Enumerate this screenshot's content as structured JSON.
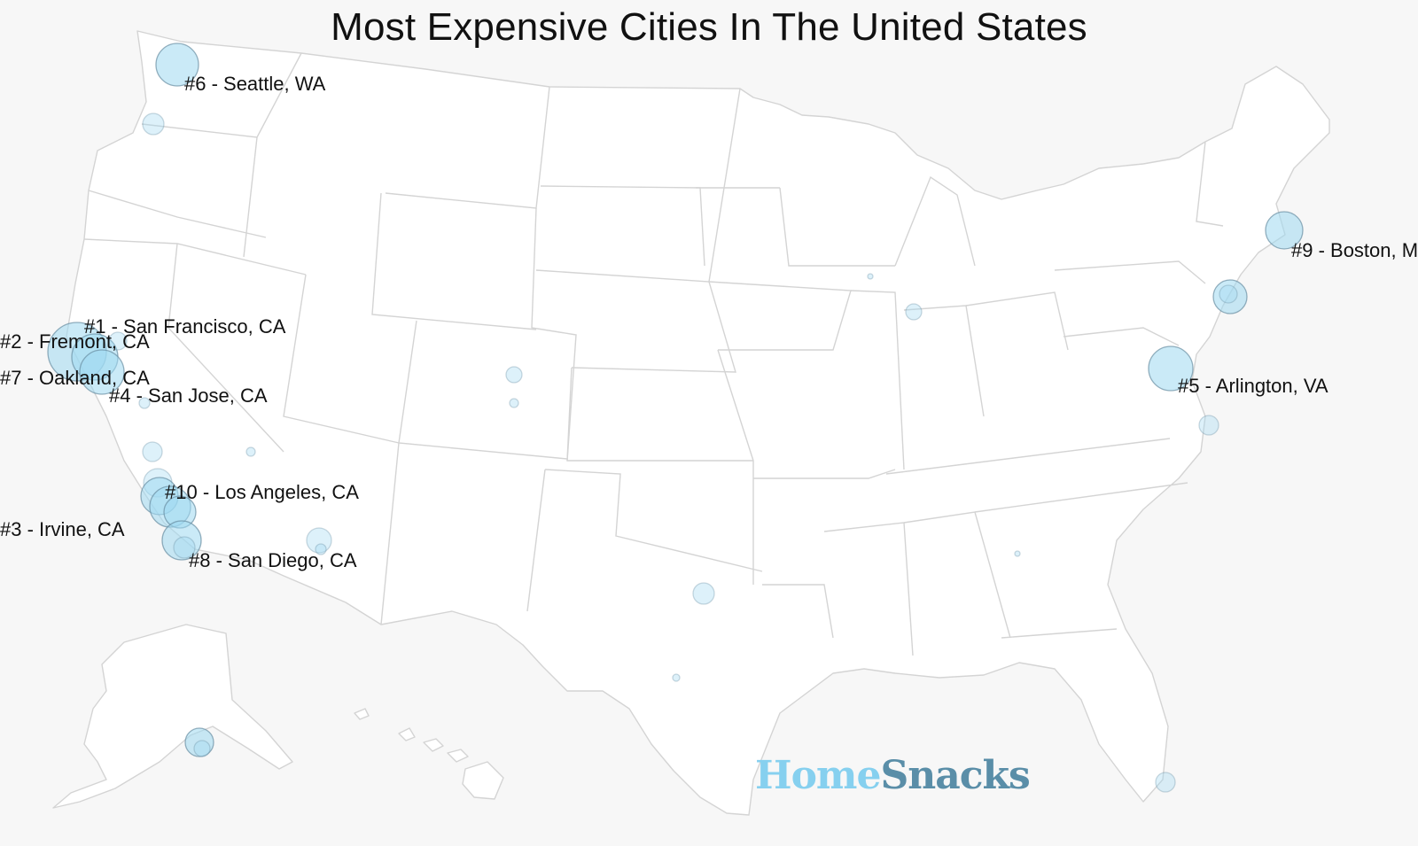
{
  "title": "Most Expensive Cities In The United States",
  "brand": {
    "part1": "Home",
    "part2": "Snacks"
  },
  "colors": {
    "bubble": "#9fd8f0",
    "bubble_stroke": "#6a8fa3",
    "state_fill": "#ffffff",
    "state_border": "#d4d4d4",
    "brand_light": "#86d0ef",
    "brand_dark": "#5a8ea8"
  },
  "labels": [
    "#1 - San Francisco, CA",
    "#2 - Fremont, CA",
    "#3 - Irvine, CA",
    "#4 - San Jose, CA",
    "#5 - Arlington, VA",
    "#6 - Seattle, WA",
    "#7 - Oakland, CA",
    "#8 - San Diego, CA",
    "#9 - Boston, M",
    "#10 - Los Angeles, CA"
  ]
}
